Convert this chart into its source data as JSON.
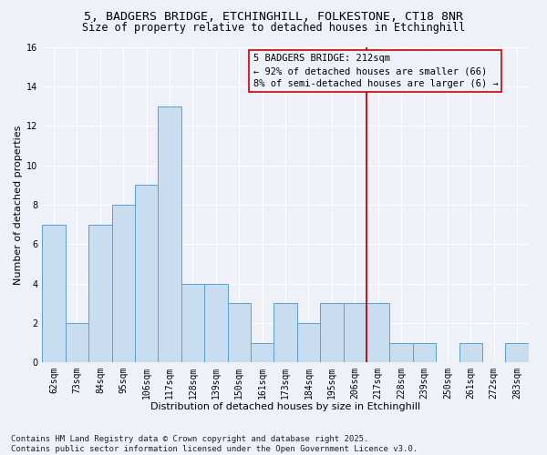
{
  "title_line1": "5, BADGERS BRIDGE, ETCHINGHILL, FOLKESTONE, CT18 8NR",
  "title_line2": "Size of property relative to detached houses in Etchinghill",
  "xlabel": "Distribution of detached houses by size in Etchinghill",
  "ylabel": "Number of detached properties",
  "categories": [
    "62sqm",
    "73sqm",
    "84sqm",
    "95sqm",
    "106sqm",
    "117sqm",
    "128sqm",
    "139sqm",
    "150sqm",
    "161sqm",
    "173sqm",
    "184sqm",
    "195sqm",
    "206sqm",
    "217sqm",
    "228sqm",
    "239sqm",
    "250sqm",
    "261sqm",
    "272sqm",
    "283sqm"
  ],
  "values": [
    7,
    2,
    7,
    8,
    9,
    13,
    4,
    4,
    3,
    1,
    3,
    2,
    3,
    3,
    3,
    1,
    1,
    0,
    1,
    0,
    1
  ],
  "bar_facecolor": "#c8ddf0",
  "bar_edgecolor": "#5a9fd4",
  "ylim": [
    0,
    16
  ],
  "yticks": [
    0,
    2,
    4,
    6,
    8,
    10,
    12,
    14,
    16
  ],
  "annotation_line1": "5 BADGERS BRIDGE: 212sqm",
  "annotation_line2": "← 92% of detached houses are smaller (66)",
  "annotation_line3": "8% of semi-detached houses are larger (6) →",
  "vline_color": "#cc0000",
  "annotation_box_edgecolor": "#cc0000",
  "footer_line1": "Contains HM Land Registry data © Crown copyright and database right 2025.",
  "footer_line2": "Contains public sector information licensed under the Open Government Licence v3.0.",
  "background_color": "#eef2f8",
  "plot_bg_color": "#eef2f8",
  "grid_color": "#ffffff",
  "title_fontsize": 9.5,
  "subtitle_fontsize": 8.5,
  "axis_label_fontsize": 8,
  "tick_fontsize": 7,
  "annotation_fontsize": 7.5,
  "footer_fontsize": 6.5,
  "vline_x": 13.5
}
